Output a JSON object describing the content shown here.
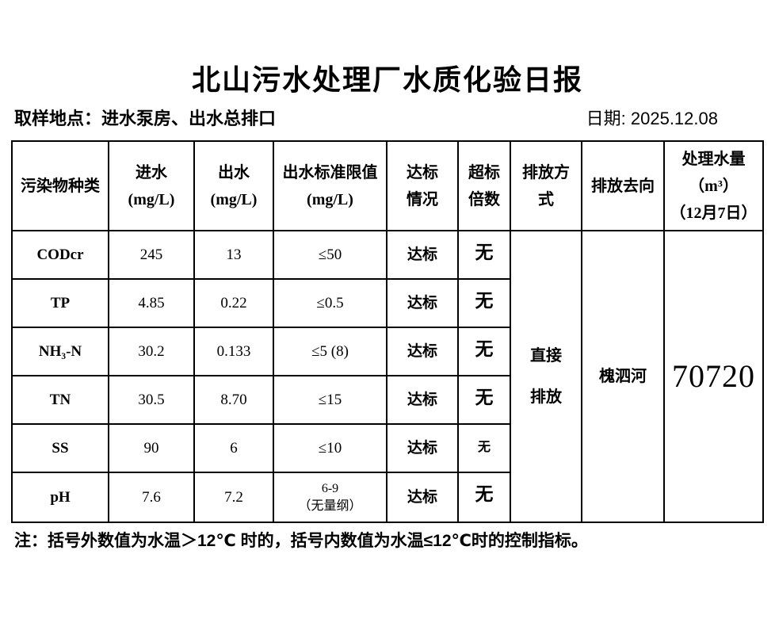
{
  "title": "北山污水处理厂水质化验日报",
  "meta": {
    "sampling_location": "取样地点：进水泵房、出水总排口",
    "date_label": "日期: 2025.12.08"
  },
  "table": {
    "headers": {
      "pollutant": "污染物种类",
      "influent": "进水\n(mg/L)",
      "effluent": "出水\n(mg/L)",
      "limit": "出水标准限值\n(mg/L)",
      "compliance": "达标\n情况",
      "exceed": "超标\n倍数",
      "discharge_mode": "排放方\n式",
      "discharge_destination": "排放去向",
      "treated_volume": "处理水量\n（m³）\n（12月7日）"
    },
    "rows": [
      {
        "pollutant": "CODcr",
        "influent": "245",
        "effluent": "13",
        "limit": "≤50",
        "compliance": "达标",
        "exceed": "无"
      },
      {
        "pollutant": "TP",
        "influent": "4.85",
        "effluent": "0.22",
        "limit": "≤0.5",
        "compliance": "达标",
        "exceed": "无"
      },
      {
        "pollutant": "NH₃-N",
        "influent": "30.2",
        "effluent": "0.133",
        "limit": "≤5 (8)",
        "compliance": "达标",
        "exceed": "无"
      },
      {
        "pollutant": "TN",
        "influent": "30.5",
        "effluent": "8.70",
        "limit": "≤15",
        "compliance": "达标",
        "exceed": "无"
      },
      {
        "pollutant": "SS",
        "influent": "90",
        "effluent": "6",
        "limit": "≤10",
        "compliance": "达标",
        "exceed": "无"
      },
      {
        "pollutant": "pH",
        "influent": "7.6",
        "effluent": "7.2",
        "limit": "6-9\n（无量纲）",
        "compliance": "达标",
        "exceed": "无"
      }
    ],
    "merged": {
      "discharge_mode": "直接\n排放",
      "discharge_destination": "槐泗河",
      "treated_volume": "70720"
    }
  },
  "note": "注：括号外数值为水温＞12℃ 时的，括号内数值为水温≤12℃时的控制指标。"
}
